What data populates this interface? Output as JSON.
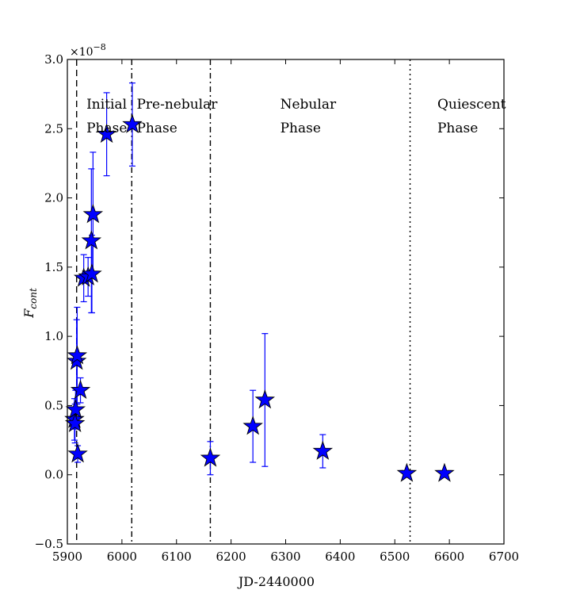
{
  "chart_data": {
    "type": "scatter",
    "xlabel": "JD-2440000",
    "ylabel": "F",
    "ylabel_subscript": "cont",
    "y_scale_base": "×10",
    "y_scale_exponent": "−8",
    "xlim": [
      5900,
      6700
    ],
    "ylim": [
      -0.5,
      3.0
    ],
    "xticks": [
      5900,
      6000,
      6100,
      6200,
      6300,
      6400,
      6500,
      6600,
      6700
    ],
    "yticks": [
      -0.5,
      0.0,
      0.5,
      1.0,
      1.5,
      2.0,
      2.5,
      3.0
    ],
    "xtick_labels": [
      "5900",
      "6000",
      "6100",
      "6200",
      "6300",
      "6400",
      "6500",
      "6600",
      "6700"
    ],
    "ytick_labels": [
      "−0.5",
      "0.0",
      "0.5",
      "1.0",
      "1.5",
      "2.0",
      "2.5",
      "3.0"
    ],
    "grid": false,
    "marker": "star",
    "marker_color": "#0000ff",
    "errorbar_color": "#0000ff",
    "points": [
      {
        "x": 5913,
        "y": 0.4,
        "err": 0.15
      },
      {
        "x": 5914,
        "y": 0.37,
        "err": 0.14
      },
      {
        "x": 5915,
        "y": 0.47,
        "err": 0.14
      },
      {
        "x": 5917,
        "y": 0.82,
        "err": 0.3
      },
      {
        "x": 5918,
        "y": 0.86,
        "err": 0.35
      },
      {
        "x": 5919,
        "y": 0.15,
        "err": 0.06
      },
      {
        "x": 5924,
        "y": 0.61,
        "err": 0.09
      },
      {
        "x": 5930,
        "y": 1.42,
        "err": 0.17
      },
      {
        "x": 5938,
        "y": 1.43,
        "err": 0.14
      },
      {
        "x": 5944,
        "y": 1.69,
        "err": 0.52
      },
      {
        "x": 5945,
        "y": 1.45,
        "err": 0.28
      },
      {
        "x": 5947,
        "y": 1.88,
        "err": 0.45
      },
      {
        "x": 5972,
        "y": 2.46,
        "err": 0.3
      },
      {
        "x": 6019,
        "y": 2.53,
        "err": 0.3
      },
      {
        "x": 6162,
        "y": 0.12,
        "err": 0.12
      },
      {
        "x": 6240,
        "y": 0.35,
        "err": 0.26
      },
      {
        "x": 6262,
        "y": 0.54,
        "err": 0.48
      },
      {
        "x": 6368,
        "y": 0.17,
        "err": 0.12
      },
      {
        "x": 6522,
        "y": 0.01,
        "err": 0.0
      },
      {
        "x": 6591,
        "y": 0.01,
        "err": 0.0
      }
    ],
    "phase_lines": [
      {
        "x": 5917,
        "style": "dashed"
      },
      {
        "x": 6018,
        "style": "dashdot"
      },
      {
        "x": 6162,
        "style": "dashdot"
      },
      {
        "x": 6528,
        "style": "dotted"
      }
    ],
    "phase_labels": [
      {
        "line1": "Initial",
        "line2": "Phase",
        "x": 5935
      },
      {
        "line1": "Pre-nebular",
        "line2": "Phase",
        "x": 6027
      },
      {
        "line1": "Nebular",
        "line2": "Phase",
        "x": 6290
      },
      {
        "line1": "Quiescent",
        "line2": "Phase",
        "x": 6578
      }
    ]
  }
}
